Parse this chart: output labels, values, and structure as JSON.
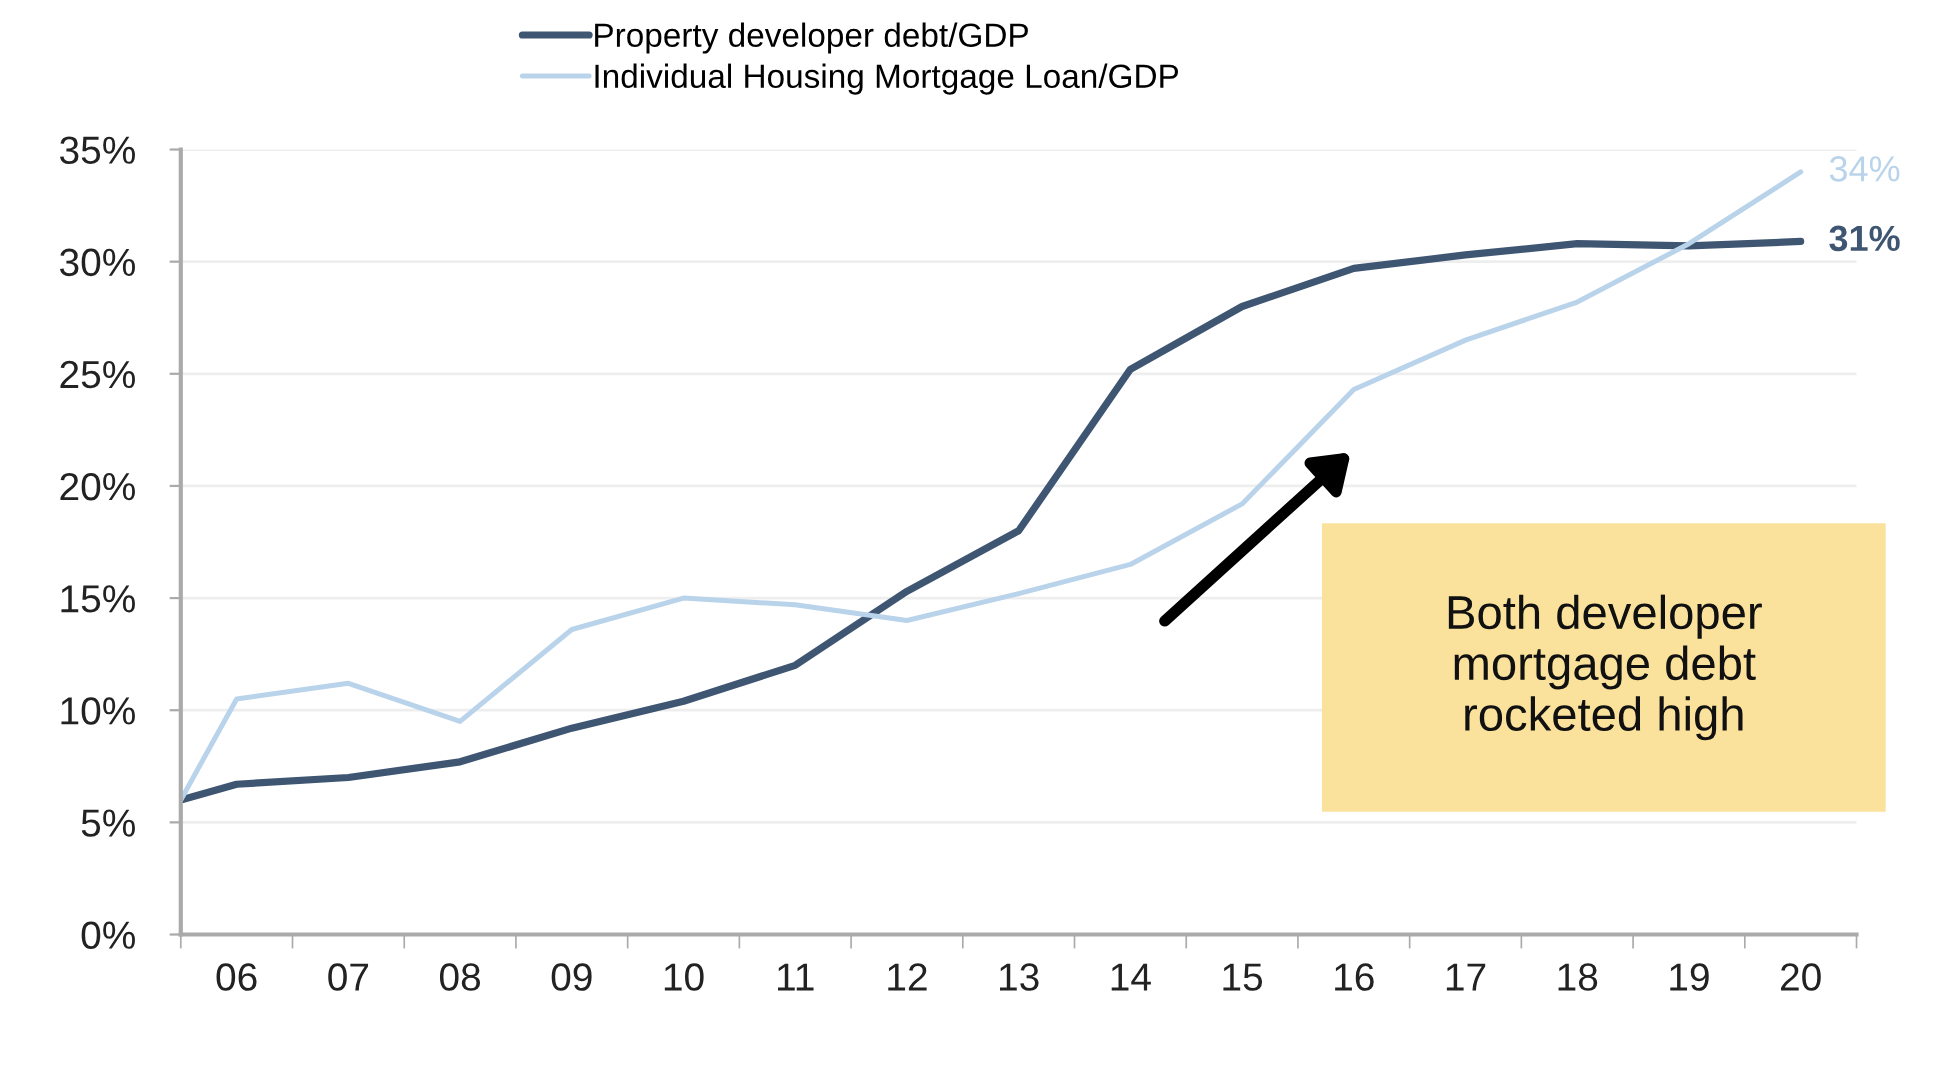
{
  "chart_data": {
    "type": "line",
    "x": [
      5.5,
      6,
      7,
      8,
      9,
      10,
      11,
      12,
      13,
      14,
      15,
      16,
      17,
      18,
      19,
      20
    ],
    "series": [
      {
        "name": "Property developer debt/GDP",
        "color": "#3f5673",
        "values": [
          6.0,
          6.7,
          7.0,
          7.7,
          9.2,
          10.4,
          12.0,
          15.3,
          18.0,
          25.2,
          28.0,
          29.7,
          30.3,
          30.8,
          30.7,
          30.9
        ]
      },
      {
        "name": "Individual Housing Mortgage Loan/GDP",
        "color": "#b9d3ea",
        "values": [
          6.0,
          10.5,
          11.2,
          9.5,
          13.6,
          15.0,
          14.7,
          14.0,
          15.2,
          16.5,
          19.2,
          24.3,
          26.5,
          28.2,
          30.8,
          34.0
        ]
      }
    ],
    "xlim": [
      5.5,
      20.5
    ],
    "xticks": [
      {
        "value": 5.5,
        "label": null
      },
      {
        "value": 6,
        "label": "06"
      },
      {
        "value": 6.5,
        "label": null
      },
      {
        "value": 7,
        "label": "07"
      },
      {
        "value": 7.5,
        "label": null
      },
      {
        "value": 8,
        "label": "08"
      },
      {
        "value": 8.5,
        "label": null
      },
      {
        "value": 9,
        "label": "09"
      },
      {
        "value": 9.5,
        "label": null
      },
      {
        "value": 10,
        "label": "10"
      },
      {
        "value": 10.5,
        "label": null
      },
      {
        "value": 11,
        "label": "11"
      },
      {
        "value": 11.5,
        "label": null
      },
      {
        "value": 12,
        "label": "12"
      },
      {
        "value": 12.5,
        "label": null
      },
      {
        "value": 13,
        "label": "13"
      },
      {
        "value": 13.5,
        "label": null
      },
      {
        "value": 14,
        "label": "14"
      },
      {
        "value": 14.5,
        "label": null
      },
      {
        "value": 15,
        "label": "15"
      },
      {
        "value": 15.5,
        "label": null
      },
      {
        "value": 16,
        "label": "16"
      },
      {
        "value": 16.5,
        "label": null
      },
      {
        "value": 17,
        "label": "17"
      },
      {
        "value": 17.5,
        "label": null
      },
      {
        "value": 18,
        "label": "18"
      },
      {
        "value": 18.5,
        "label": null
      },
      {
        "value": 19,
        "label": "19"
      },
      {
        "value": 19.5,
        "label": null
      },
      {
        "value": 20,
        "label": "20"
      },
      {
        "value": 20.5,
        "label": null
      }
    ],
    "ylim": [
      0,
      35
    ],
    "yticks": [
      {
        "value": 0,
        "label": "0%"
      },
      {
        "value": 5,
        "label": "5%"
      },
      {
        "value": 10,
        "label": "10%"
      },
      {
        "value": 15,
        "label": "15%"
      },
      {
        "value": 20,
        "label": "20%"
      },
      {
        "value": 25,
        "label": "25%"
      },
      {
        "value": 30,
        "label": "30%"
      },
      {
        "value": 35,
        "label": "35%"
      }
    ],
    "grid": "y",
    "legend": "top",
    "marker": "none",
    "line_style": "solid",
    "annotations": [
      {
        "text": "34%",
        "x": 20,
        "y": 34.0
      },
      {
        "text": "31%",
        "x": 20,
        "y": 30.9
      },
      "Both developer\nmortgage debt\nrocketed high"
    ]
  }
}
